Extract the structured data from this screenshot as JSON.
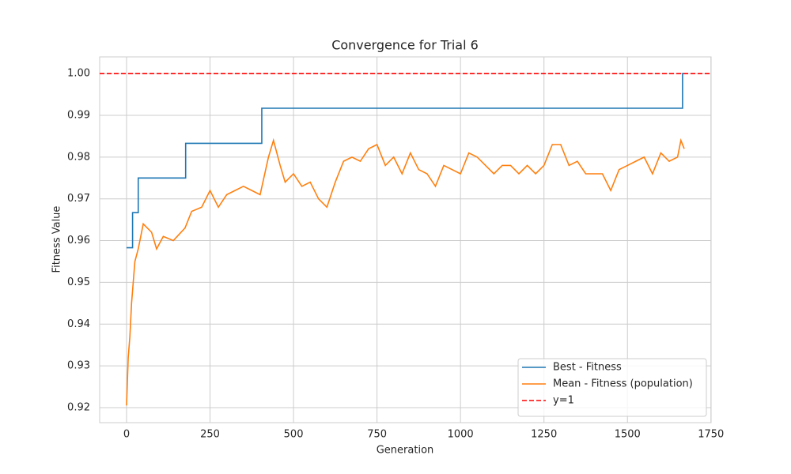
{
  "chart_data": {
    "type": "line",
    "title": "Convergence for Trial 6",
    "x_label": "Generation",
    "y_label": "Fitness Value",
    "xlim": [
      -80.5,
      1750.5
    ],
    "xticks": [
      0,
      250,
      500,
      750,
      1000,
      1250,
      1500,
      1750
    ],
    "ylim": [
      0.9164,
      1.004
    ],
    "yticks": [
      0.92,
      0.93,
      0.94,
      0.95,
      0.96,
      0.97,
      0.98,
      0.99,
      {
        "value": 1,
        "label": "1.00"
      }
    ],
    "grid": true,
    "legend": "lower right",
    "series": [
      {
        "name": "Best - Fitness",
        "color": "#1f77b4",
        "drawstyle": "steps-post",
        "x": [
          0,
          18,
          35,
          177,
          405,
          1665,
          1669
        ],
        "values": [
          0.9583,
          0.9667,
          0.975,
          0.9833,
          0.9917,
          1.0,
          1.0
        ]
      },
      {
        "name": "Mean - Fitness (population)",
        "color": "#ff7f0e",
        "x": [
          0,
          5,
          10,
          15,
          25,
          35,
          50,
          75,
          90,
          110,
          140,
          175,
          195,
          225,
          250,
          275,
          300,
          325,
          350,
          375,
          400,
          425,
          440,
          460,
          475,
          500,
          525,
          550,
          575,
          600,
          625,
          650,
          675,
          700,
          725,
          750,
          775,
          800,
          825,
          850,
          875,
          900,
          925,
          950,
          975,
          1000,
          1025,
          1050,
          1075,
          1100,
          1125,
          1150,
          1175,
          1200,
          1225,
          1250,
          1275,
          1300,
          1325,
          1350,
          1375,
          1400,
          1425,
          1450,
          1475,
          1500,
          1525,
          1550,
          1575,
          1600,
          1625,
          1650,
          1660,
          1670
        ],
        "values": [
          0.9205,
          0.932,
          0.937,
          0.945,
          0.955,
          0.958,
          0.964,
          0.962,
          0.958,
          0.961,
          0.96,
          0.963,
          0.967,
          0.968,
          0.972,
          0.968,
          0.971,
          0.972,
          0.973,
          0.972,
          0.971,
          0.98,
          0.984,
          0.978,
          0.974,
          0.976,
          0.973,
          0.974,
          0.97,
          0.968,
          0.974,
          0.979,
          0.98,
          0.979,
          0.982,
          0.983,
          0.978,
          0.98,
          0.976,
          0.981,
          0.977,
          0.976,
          0.973,
          0.978,
          0.977,
          0.976,
          0.981,
          0.98,
          0.978,
          0.976,
          0.978,
          0.978,
          0.976,
          0.978,
          0.976,
          0.978,
          0.983,
          0.983,
          0.978,
          0.979,
          0.976,
          0.976,
          0.976,
          0.972,
          0.977,
          0.978,
          0.979,
          0.98,
          0.976,
          0.981,
          0.979,
          0.98,
          0.984,
          0.982
        ]
      }
    ],
    "hlines": [
      {
        "name": "y=1",
        "value": 1,
        "color": "#ff0000",
        "dashed": true
      }
    ]
  }
}
